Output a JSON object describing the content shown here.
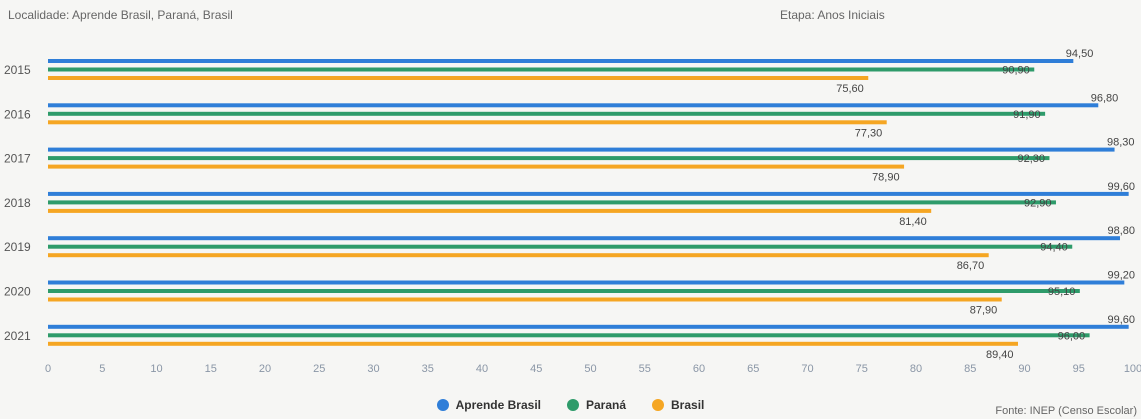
{
  "header": {
    "location": "Localidade: Aprende Brasil, Paraná, Brasil",
    "stage": "Etapa: Anos Iniciais"
  },
  "source": "Fonte: INEP (Censo Escolar)",
  "colors": {
    "Aprende Brasil": "#2f7ed8",
    "Paraná": "#2e9b6a",
    "Brasil": "#f5a623"
  },
  "chart_data": {
    "type": "bar",
    "orientation": "horizontal",
    "categories": [
      "2015",
      "2016",
      "2017",
      "2018",
      "2019",
      "2020",
      "2021"
    ],
    "series": [
      {
        "name": "Aprende Brasil",
        "values": [
          94.5,
          96.8,
          98.3,
          99.6,
          98.8,
          99.2,
          99.6
        ],
        "labels": [
          "94,50",
          "96,80",
          "98,30",
          "99,60",
          "98,80",
          "99,20",
          "99,60"
        ]
      },
      {
        "name": "Paraná",
        "values": [
          90.9,
          91.9,
          92.3,
          92.9,
          94.4,
          95.1,
          96.0
        ],
        "labels": [
          "90,90",
          "91,90",
          "92,30",
          "92,90",
          "94,40",
          "95,10",
          "96,00"
        ]
      },
      {
        "name": "Brasil",
        "values": [
          75.6,
          77.3,
          78.9,
          81.4,
          86.7,
          87.9,
          89.4
        ],
        "labels": [
          "75,60",
          "77,30",
          "78,90",
          "81,40",
          "86,70",
          "87,90",
          "89,40"
        ]
      }
    ],
    "xlim": [
      0,
      100
    ],
    "xticks": [
      "0",
      "5",
      "10",
      "15",
      "20",
      "25",
      "30",
      "35",
      "40",
      "45",
      "50",
      "55",
      "60",
      "65",
      "70",
      "75",
      "80",
      "85",
      "90",
      "95",
      "100"
    ],
    "legend": [
      "Aprende Brasil",
      "Paraná",
      "Brasil"
    ],
    "legend_position": "bottom"
  }
}
